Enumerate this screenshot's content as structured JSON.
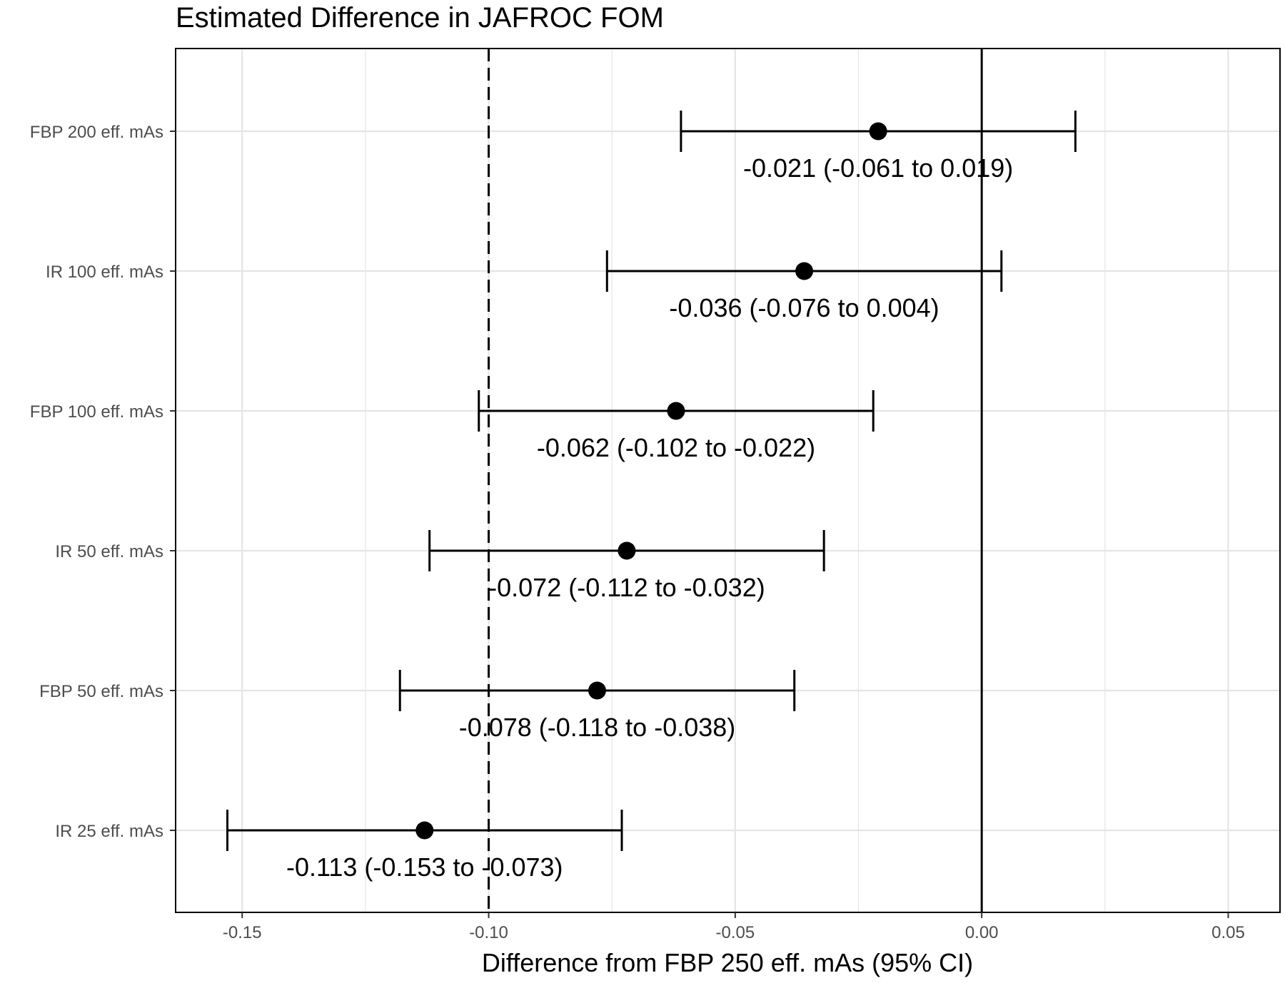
{
  "chart_data": {
    "type": "forest",
    "title": "Estimated Difference in JAFROC FOM",
    "xlabel": "Difference from  FBP 250 eff. mAs (95% CI)",
    "ylabel": "",
    "xlim": [
      -0.1635,
      0.0605
    ],
    "x_ticks": [
      {
        "value": -0.15,
        "label": "-0.15"
      },
      {
        "value": -0.1,
        "label": "-0.10"
      },
      {
        "value": -0.05,
        "label": "-0.05"
      },
      {
        "value": 0.0,
        "label": "0.00"
      },
      {
        "value": 0.05,
        "label": "0.05"
      }
    ],
    "categories": [
      "FBP 200 eff. mAs",
      "IR 100 eff. mAs",
      "FBP 100 eff. mAs",
      "IR 50 eff. mAs",
      "FBP 50 eff. mAs",
      "IR 25 eff. mAs"
    ],
    "estimates": [
      -0.021,
      -0.036,
      -0.062,
      -0.072,
      -0.078,
      -0.113
    ],
    "ci_lower": [
      -0.061,
      -0.076,
      -0.102,
      -0.112,
      -0.118,
      -0.153
    ],
    "ci_upper": [
      0.019,
      0.004,
      -0.022,
      -0.032,
      -0.038,
      -0.073
    ],
    "labels": [
      "-0.021 (-0.061 to 0.019)",
      "-0.036 (-0.076 to 0.004)",
      "-0.062 (-0.102 to -0.022)",
      "-0.072 (-0.112 to -0.032)",
      "-0.078 (-0.118 to -0.038)",
      "-0.113 (-0.153 to -0.073)"
    ],
    "reference_lines": [
      {
        "value": 0.0,
        "style": "solid"
      },
      {
        "value": -0.1,
        "style": "dashed"
      }
    ],
    "grid": true,
    "legend": "none",
    "colors": {
      "points": "#000000",
      "grid": "#e5e5e5",
      "panel_border": "#000000",
      "tick_text": "#4d4d4d"
    }
  }
}
